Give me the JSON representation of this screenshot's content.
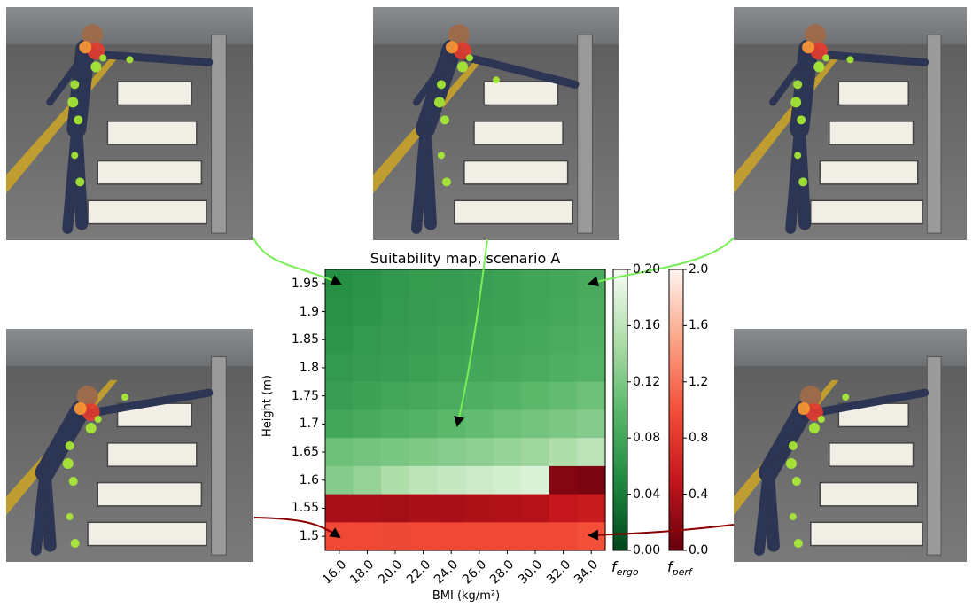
{
  "chart_data": {
    "type": "heatmap",
    "title": "Suitability map, scenario A",
    "xlabel": "BMI (kg/m²)",
    "ylabel": "Height (m)",
    "x_ticks": [
      "16.0",
      "18.0",
      "20.0",
      "22.0",
      "24.0",
      "26.0",
      "28.0",
      "30.0",
      "32.0",
      "34.0"
    ],
    "y_ticks": [
      "1.95",
      "1.9",
      "1.85",
      "1.8",
      "1.75",
      "1.7",
      "1.65",
      "1.6",
      "1.55",
      "1.5"
    ],
    "rows_top_to_bottom": [
      {
        "height": "1.95",
        "metric": "f_ergo",
        "values": [
          0.055,
          0.06,
          0.065,
          0.068,
          0.07,
          0.072,
          0.075,
          0.078,
          0.08,
          0.085
        ]
      },
      {
        "height": "1.9",
        "metric": "f_ergo",
        "values": [
          0.058,
          0.062,
          0.066,
          0.069,
          0.071,
          0.073,
          0.076,
          0.079,
          0.082,
          0.087
        ]
      },
      {
        "height": "1.85",
        "metric": "f_ergo",
        "values": [
          0.062,
          0.066,
          0.07,
          0.072,
          0.074,
          0.077,
          0.08,
          0.082,
          0.086,
          0.09
        ]
      },
      {
        "height": "1.8",
        "metric": "f_ergo",
        "values": [
          0.066,
          0.07,
          0.072,
          0.075,
          0.078,
          0.08,
          0.083,
          0.086,
          0.09,
          0.094
        ]
      },
      {
        "height": "1.75",
        "metric": "f_ergo",
        "values": [
          0.072,
          0.076,
          0.08,
          0.083,
          0.086,
          0.09,
          0.095,
          0.1,
          0.105,
          0.112
        ]
      },
      {
        "height": "1.7",
        "metric": "f_ergo",
        "values": [
          0.08,
          0.085,
          0.09,
          0.095,
          0.1,
          0.105,
          0.11,
          0.115,
          0.12,
          0.125
        ]
      },
      {
        "height": "1.65",
        "metric": "f_ergo",
        "values": [
          0.11,
          0.115,
          0.118,
          0.122,
          0.126,
          0.13,
          0.135,
          0.14,
          0.15,
          0.16
        ]
      },
      {
        "height": "1.6",
        "metric": "mixed",
        "values": [
          0.125,
          0.135,
          0.15,
          0.16,
          0.165,
          0.17,
          0.175,
          0.18,
          0.15,
          0.1
        ],
        "perf_cells": [
          8,
          9
        ]
      },
      {
        "height": "1.55",
        "metric": "f_perf",
        "values": [
          0.35,
          0.35,
          0.33,
          0.36,
          0.35,
          0.38,
          0.4,
          0.42,
          0.5,
          0.55
        ]
      },
      {
        "height": "1.5",
        "metric": "f_perf",
        "values": [
          0.95,
          0.95,
          0.93,
          0.95,
          0.95,
          0.95,
          0.95,
          0.95,
          0.95,
          1.0
        ]
      }
    ],
    "colorbars": [
      {
        "label": "f",
        "sub": "ergo",
        "range": [
          0.0,
          0.2
        ],
        "ticks": [
          "0.00",
          "0.04",
          "0.08",
          "0.12",
          "0.16",
          "0.20"
        ],
        "colormap": "greens_r"
      },
      {
        "label": "f",
        "sub": "perf",
        "range": [
          0.0,
          2.0
        ],
        "ticks": [
          "0.0",
          "0.4",
          "0.8",
          "1.2",
          "1.6",
          "2.0"
        ],
        "colormap": "reds_r"
      }
    ]
  },
  "colors": {
    "green_arrow": "#77ee55",
    "red_arrow": "#8b0000",
    "arrow_head": "#000000",
    "marker_yellow": "#aaee33",
    "marker_orange": "#ff9933"
  }
}
